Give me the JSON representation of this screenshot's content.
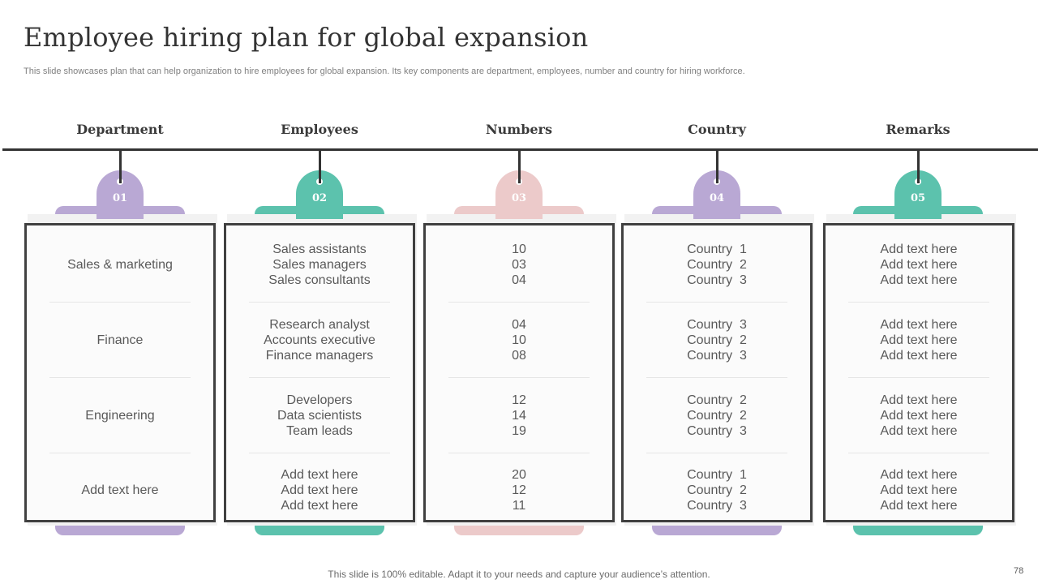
{
  "title": "Employee hiring plan for global expansion",
  "subtitle": "This slide showcases plan that can help organization to hire employees for global expansion. Its key components are department, employees, number and country for hiring workforce.",
  "colors": {
    "purple": "#b9a8d4",
    "teal": "#5cc2ad",
    "pink": "#eccaca",
    "line": "#333333"
  },
  "columns": [
    {
      "header": "Department",
      "number": "01",
      "color": "#b9a8d4",
      "rows": [
        [
          "Sales & marketing"
        ],
        [
          "Finance"
        ],
        [
          "Engineering"
        ],
        [
          "Add text here"
        ]
      ]
    },
    {
      "header": "Employees",
      "number": "02",
      "color": "#5cc2ad",
      "rows": [
        [
          "Sales assistants",
          "Sales managers",
          "Sales consultants"
        ],
        [
          "Research analyst",
          "Accounts executive",
          "Finance managers"
        ],
        [
          "Developers",
          "Data scientists",
          "Team leads"
        ],
        [
          "Add text here",
          "Add text here",
          "Add text here"
        ]
      ]
    },
    {
      "header": "Numbers",
      "number": "03",
      "color": "#eccaca",
      "rows": [
        [
          "10",
          "03",
          "04"
        ],
        [
          "04",
          "10",
          "08"
        ],
        [
          "12",
          "14",
          "19"
        ],
        [
          "20",
          "12",
          "11"
        ]
      ]
    },
    {
      "header": "Country",
      "number": "04",
      "color": "#b9a8d4",
      "rows": [
        [
          "Country  1",
          "Country  2",
          "Country  3"
        ],
        [
          "Country  3",
          "Country  2",
          "Country  3"
        ],
        [
          "Country  2",
          "Country  2",
          "Country  3"
        ],
        [
          "Country  1",
          "Country  2",
          "Country  3"
        ]
      ]
    },
    {
      "header": "Remarks",
      "number": "05",
      "color": "#5cc2ad",
      "rows": [
        [
          "Add text here",
          "Add text here",
          "Add text here"
        ],
        [
          "Add text here",
          "Add text here",
          "Add text here"
        ],
        [
          "Add text here",
          "Add text here",
          "Add text here"
        ],
        [
          "Add text here",
          "Add text here",
          "Add text here"
        ]
      ]
    }
  ],
  "footer": "This slide is 100% editable. Adapt it to your needs and capture your audience’s attention.",
  "page_number": "78"
}
